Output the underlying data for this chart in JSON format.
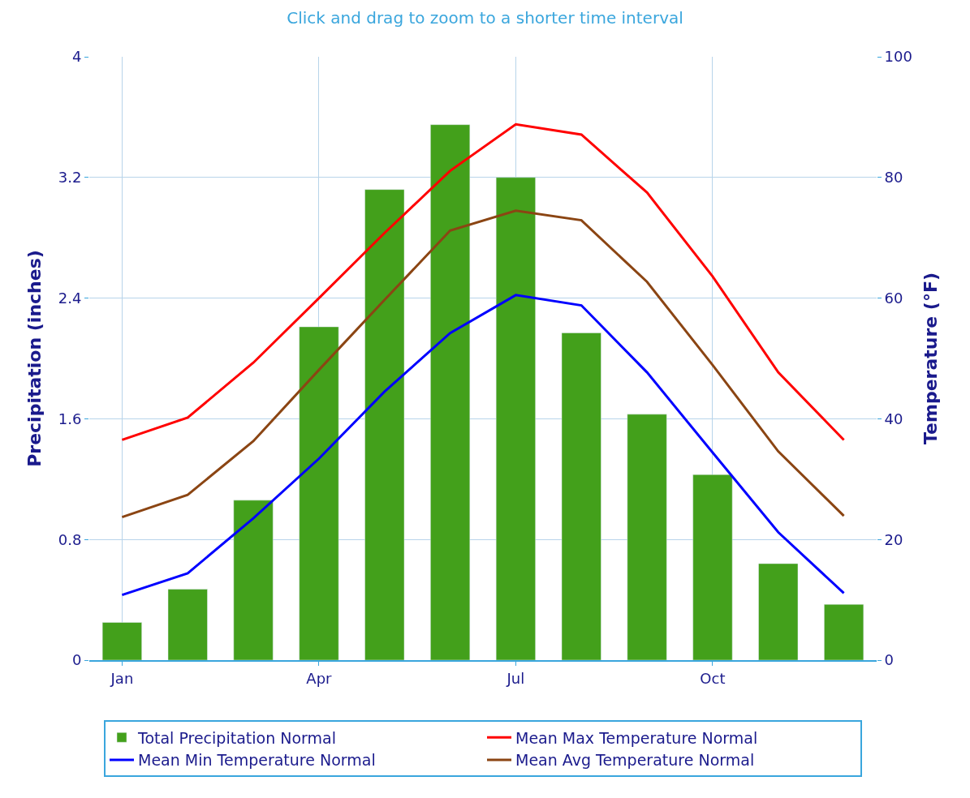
{
  "chart_data": {
    "type": "bar",
    "title": "Click and drag to zoom to a shorter time interval",
    "ylabel": "Precipitation (inches)",
    "y2label": "Temperature (°F)",
    "categories": [
      "Jan",
      null,
      null,
      "Apr",
      null,
      null,
      "Jul",
      null,
      null,
      "Oct",
      null,
      null
    ],
    "series": [
      {
        "name": "Total Precipitation Normal",
        "color": "#43a01b",
        "values": [
          0.25,
          0.47,
          1.06,
          2.21,
          3.12,
          3.55,
          3.2,
          2.17,
          1.63,
          1.23,
          0.64,
          0.37
        ]
      },
      {
        "name": "Mean Max Temperature Normal",
        "type": "line",
        "axis": "y2",
        "color": "#ff0000",
        "values": [
          36.5,
          40.2,
          49.3,
          60.0,
          70.8,
          81.1,
          88.8,
          87.1,
          77.5,
          63.6,
          47.7,
          36.5
        ]
      },
      {
        "name": "Mean Min Temperature Normal",
        "type": "line",
        "axis": "y2",
        "color": "#0000ff",
        "values": [
          10.8,
          14.4,
          23.5,
          33.4,
          44.5,
          54.2,
          60.5,
          58.8,
          47.7,
          34.4,
          21.2,
          11.1
        ]
      },
      {
        "name": "Mean Avg Temperature Normal",
        "type": "line",
        "axis": "y2",
        "color": "#8b4513",
        "values": [
          23.7,
          27.4,
          36.3,
          48.1,
          59.7,
          71.2,
          74.5,
          72.9,
          62.7,
          48.9,
          34.6,
          23.9
        ]
      }
    ],
    "ylim": [
      0,
      4
    ],
    "yticks": [
      0,
      0.8,
      1.6,
      2.4,
      3.2,
      4
    ],
    "y2lim": [
      0,
      100
    ],
    "y2ticks": [
      0,
      20,
      40,
      60,
      80,
      100
    ],
    "grid": true,
    "legend": "bottom",
    "marker": "none",
    "line_style": "solid"
  }
}
